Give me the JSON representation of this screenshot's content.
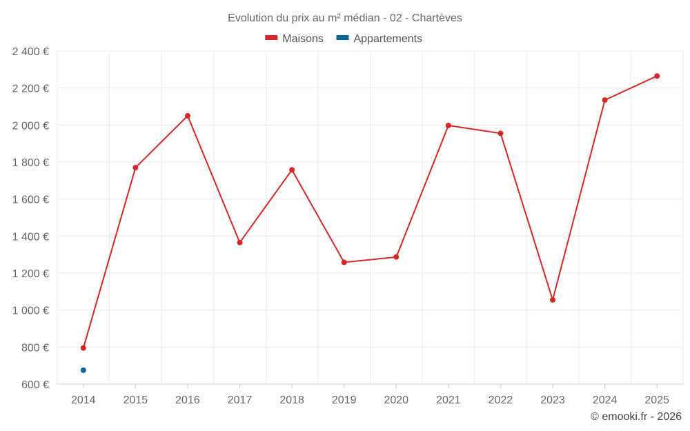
{
  "chart_data": {
    "type": "line",
    "title": "Evolution du prix au m² médian - 02 - Chartèves",
    "x": [
      "2014",
      "2015",
      "2016",
      "2017",
      "2018",
      "2019",
      "2020",
      "2021",
      "2022",
      "2023",
      "2024",
      "2025"
    ],
    "series": [
      {
        "name": "Maisons",
        "color": "#d62728",
        "values": [
          795,
          1770,
          2050,
          1365,
          1758,
          1258,
          1287,
          1998,
          1955,
          1055,
          2135,
          2265
        ]
      },
      {
        "name": "Appartements",
        "color": "#0e6399",
        "values": [
          675,
          null,
          null,
          null,
          null,
          null,
          null,
          null,
          null,
          null,
          null,
          null
        ]
      }
    ],
    "yticks": [
      "600 €",
      "800 €",
      "1 000 €",
      "1 200 €",
      "1 400 €",
      "1 600 €",
      "1 800 €",
      "2 000 €",
      "2 200 €",
      "2 400 €"
    ],
    "ylim": [
      600,
      2400
    ],
    "grid": true,
    "legend_position": "top-center"
  },
  "footer": {
    "copyright": "© emooki.fr - 2026"
  }
}
